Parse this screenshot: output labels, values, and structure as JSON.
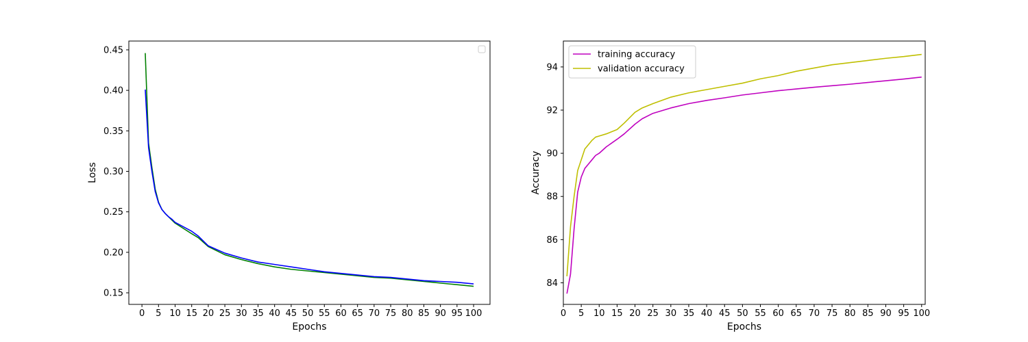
{
  "chart_data": [
    {
      "type": "line",
      "xlabel": "Epochs",
      "ylabel": "Loss",
      "xlim": [
        -3.95,
        104.95
      ],
      "ylim": [
        0.1357,
        0.4609
      ],
      "xticks": [
        0,
        5,
        10,
        15,
        20,
        25,
        30,
        35,
        40,
        45,
        50,
        55,
        60,
        65,
        70,
        75,
        80,
        85,
        90,
        95,
        100
      ],
      "yticks": [
        0.15,
        0.2,
        0.25,
        0.3,
        0.35,
        0.4,
        0.45
      ],
      "ytick_labels": [
        "0.15",
        "0.20",
        "0.25",
        "0.30",
        "0.35",
        "0.40",
        "0.45"
      ],
      "grid": false,
      "legend": "top-right",
      "legend_empty": true,
      "x": [
        1,
        2,
        3,
        4,
        5,
        6,
        7,
        8,
        9,
        10,
        15,
        17,
        20,
        25,
        30,
        35,
        40,
        45,
        50,
        55,
        60,
        65,
        70,
        75,
        80,
        85,
        90,
        95,
        100
      ],
      "series": [
        {
          "color": "#008000",
          "values": [
            0.446,
            0.335,
            0.305,
            0.278,
            0.262,
            0.253,
            0.248,
            0.244,
            0.24,
            0.236,
            0.223,
            0.218,
            0.207,
            0.197,
            0.191,
            0.186,
            0.182,
            0.179,
            0.177,
            0.175,
            0.173,
            0.171,
            0.169,
            0.168,
            0.166,
            0.164,
            0.162,
            0.16,
            0.158
          ]
        },
        {
          "color": "#0000ff",
          "values": [
            0.401,
            0.329,
            0.3,
            0.275,
            0.261,
            0.253,
            0.248,
            0.244,
            0.241,
            0.237,
            0.226,
            0.22,
            0.208,
            0.199,
            0.193,
            0.188,
            0.185,
            0.182,
            0.179,
            0.176,
            0.174,
            0.172,
            0.17,
            0.169,
            0.167,
            0.165,
            0.164,
            0.163,
            0.161
          ]
        }
      ]
    },
    {
      "type": "line",
      "xlabel": "Epochs",
      "ylabel": "Accuracy",
      "xlim": [
        0,
        101
      ],
      "ylim": [
        83.0,
        95.2
      ],
      "xticks": [
        0,
        5,
        10,
        15,
        20,
        25,
        30,
        35,
        40,
        45,
        50,
        55,
        60,
        65,
        70,
        75,
        80,
        85,
        90,
        95,
        100
      ],
      "yticks": [
        84,
        86,
        88,
        90,
        92,
        94
      ],
      "ytick_labels": [
        "84",
        "86",
        "88",
        "90",
        "92",
        "94"
      ],
      "grid": false,
      "legend": "top-left",
      "x": [
        1,
        2,
        3,
        4,
        5,
        6,
        7,
        8,
        9,
        10,
        12,
        15,
        17,
        20,
        22,
        25,
        30,
        35,
        40,
        45,
        50,
        55,
        60,
        65,
        70,
        75,
        80,
        85,
        90,
        95,
        100
      ],
      "series": [
        {
          "name": "training accuracy",
          "color": "#bf00bf",
          "values": [
            83.5,
            84.4,
            86.5,
            88.2,
            88.9,
            89.3,
            89.5,
            89.7,
            89.9,
            90.0,
            90.3,
            90.65,
            90.9,
            91.35,
            91.6,
            91.85,
            92.1,
            92.3,
            92.45,
            92.57,
            92.7,
            92.8,
            92.9,
            92.98,
            93.06,
            93.13,
            93.2,
            93.28,
            93.36,
            93.44,
            93.53
          ]
        },
        {
          "name": "validation accuracy",
          "color": "#bfbf00",
          "values": [
            84.3,
            86.6,
            88.0,
            89.2,
            89.7,
            90.2,
            90.4,
            90.6,
            90.75,
            90.8,
            90.9,
            91.1,
            91.4,
            91.9,
            92.1,
            92.3,
            92.6,
            92.8,
            92.95,
            93.1,
            93.25,
            93.45,
            93.6,
            93.8,
            93.95,
            94.1,
            94.2,
            94.3,
            94.4,
            94.48,
            94.58
          ]
        }
      ]
    }
  ]
}
